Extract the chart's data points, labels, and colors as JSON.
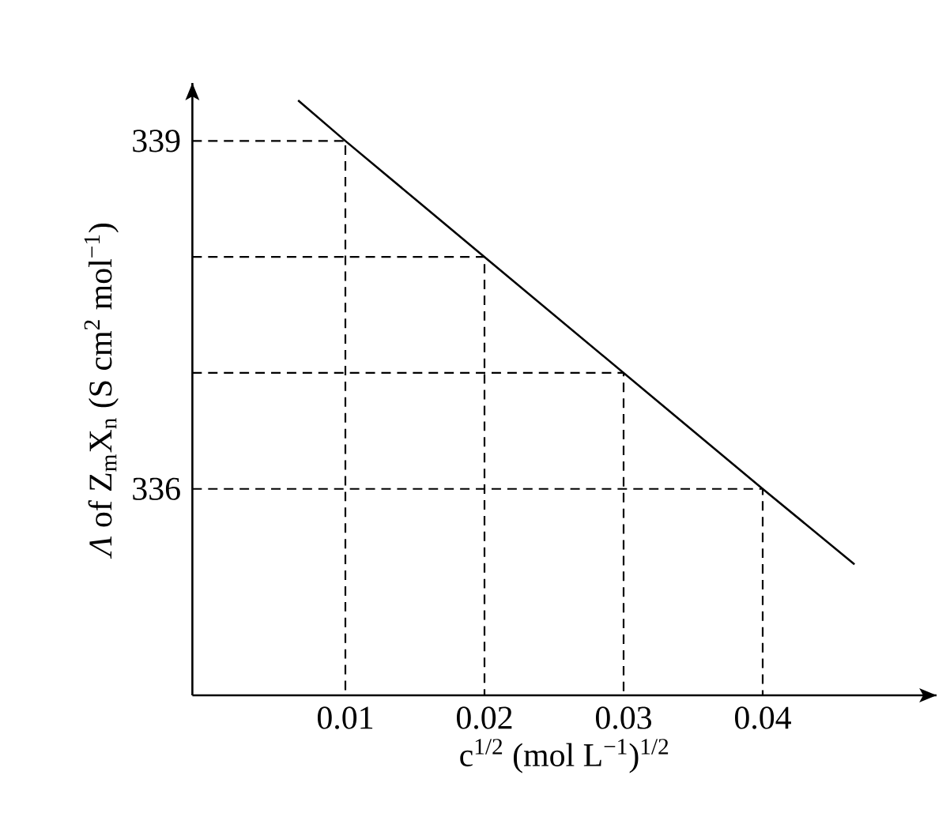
{
  "chart_data": {
    "type": "line",
    "xlabel": "c$^{1/2}$ (mol L$^{−1}$)$^{1/2}$",
    "ylabel": "*Λ* of Z$_{m}$X$_{n}$ (S cm$^{2}$ mol$^{−1}$)",
    "x": [
      0.0066,
      0.01,
      0.02,
      0.03,
      0.04,
      0.0466
    ],
    "series": [
      {
        "color": "#000000",
        "values": [
          339.35,
          339,
          338,
          337,
          336,
          335.35
        ]
      },
      {
        "color": "#000000",
        "line_style": "dashed",
        "x": [
          -0.001,
          0.01,
          0.01
        ],
        "values": [
          339,
          339,
          334.22
        ]
      },
      {
        "color": "#000000",
        "line_style": "dashed",
        "x": [
          -0.001,
          0.02,
          0.02
        ],
        "values": [
          338,
          338,
          334.22
        ]
      },
      {
        "color": "#000000",
        "line_style": "dashed",
        "x": [
          -0.001,
          0.03,
          0.03
        ],
        "values": [
          337,
          337,
          334.22
        ]
      },
      {
        "color": "#000000",
        "line_style": "dashed",
        "x": [
          -0.001,
          0.04,
          0.04
        ],
        "values": [
          336,
          336,
          334.22
        ]
      }
    ],
    "xlim": [
      -0.001,
      0.0525
    ],
    "ylim": [
      334.22,
      339.5
    ],
    "xticks": [
      0.01,
      0.02,
      0.03,
      0.04
    ],
    "yticks": [
      336,
      339
    ],
    "marker": "none",
    "line_style": "solid",
    "grid": false
  }
}
